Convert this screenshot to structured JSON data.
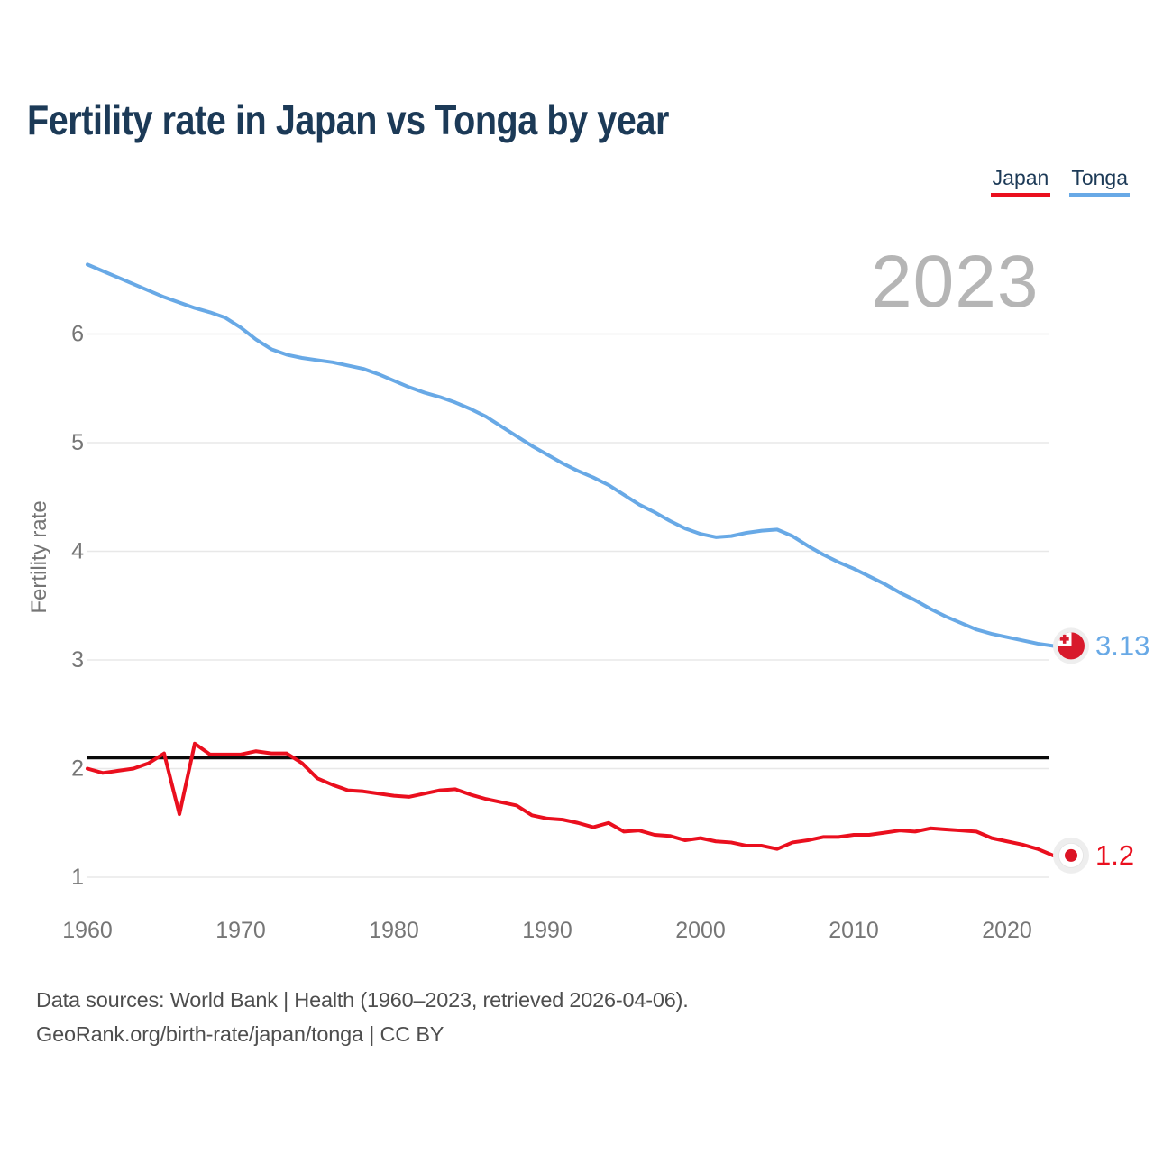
{
  "page": {
    "title": "Fertility rate in Japan vs Tonga by year",
    "watermark_year": "2023",
    "footer": {
      "line1": "Data sources: World Bank | Health (1960–2023, retrieved 2026-04-06).",
      "line2": "GeoRank.org/birth-rate/japan/tonga | CC BY"
    }
  },
  "legend": {
    "position": "top-right",
    "items": [
      {
        "label": "Japan",
        "color": "#ea0f1e"
      },
      {
        "label": "Tonga",
        "color": "#68a9e6"
      }
    ]
  },
  "chart_data": {
    "type": "line",
    "title": "Fertility rate in Japan vs Tonga by year",
    "xlabel": "",
    "ylabel": "Fertility rate",
    "xlim": [
      1960,
      2023
    ],
    "ylim": [
      1,
      6.7
    ],
    "x_ticks": [
      1960,
      1970,
      1980,
      1990,
      2000,
      2010,
      2020
    ],
    "y_ticks": [
      1,
      2,
      3,
      4,
      5,
      6
    ],
    "grid": "horizontal",
    "watermark": "2023",
    "reference_line": {
      "value": 2.1,
      "color": "#0a0a0a"
    },
    "x": [
      1960,
      1961,
      1962,
      1963,
      1964,
      1965,
      1966,
      1967,
      1968,
      1969,
      1970,
      1971,
      1972,
      1973,
      1974,
      1975,
      1976,
      1977,
      1978,
      1979,
      1980,
      1981,
      1982,
      1983,
      1984,
      1985,
      1986,
      1987,
      1988,
      1989,
      1990,
      1991,
      1992,
      1993,
      1994,
      1995,
      1996,
      1997,
      1998,
      1999,
      2000,
      2001,
      2002,
      2003,
      2004,
      2005,
      2006,
      2007,
      2008,
      2009,
      2010,
      2011,
      2012,
      2013,
      2014,
      2015,
      2016,
      2017,
      2018,
      2019,
      2020,
      2021,
      2022,
      2023
    ],
    "series": [
      {
        "name": "Japan",
        "color": "#ea0f1e",
        "end_label": "1.2",
        "end_marker": "japan-flag",
        "values": [
          2.0,
          1.96,
          1.98,
          2.0,
          2.05,
          2.14,
          1.58,
          2.23,
          2.13,
          2.13,
          2.13,
          2.16,
          2.14,
          2.14,
          2.05,
          1.91,
          1.85,
          1.8,
          1.79,
          1.77,
          1.75,
          1.74,
          1.77,
          1.8,
          1.81,
          1.76,
          1.72,
          1.69,
          1.66,
          1.57,
          1.54,
          1.53,
          1.5,
          1.46,
          1.5,
          1.42,
          1.43,
          1.39,
          1.38,
          1.34,
          1.36,
          1.33,
          1.32,
          1.29,
          1.29,
          1.26,
          1.32,
          1.34,
          1.37,
          1.37,
          1.39,
          1.39,
          1.41,
          1.43,
          1.42,
          1.45,
          1.44,
          1.43,
          1.42,
          1.36,
          1.33,
          1.3,
          1.26,
          1.2
        ]
      },
      {
        "name": "Tonga",
        "color": "#68a9e6",
        "end_label": "3.13",
        "end_marker": "tonga-flag",
        "values": [
          6.64,
          6.58,
          6.52,
          6.46,
          6.4,
          6.34,
          6.29,
          6.24,
          6.2,
          6.15,
          6.06,
          5.95,
          5.86,
          5.81,
          5.78,
          5.76,
          5.74,
          5.71,
          5.68,
          5.63,
          5.57,
          5.51,
          5.46,
          5.42,
          5.37,
          5.31,
          5.24,
          5.15,
          5.06,
          4.97,
          4.89,
          4.81,
          4.74,
          4.68,
          4.61,
          4.52,
          4.43,
          4.36,
          4.28,
          4.21,
          4.16,
          4.13,
          4.14,
          4.17,
          4.19,
          4.2,
          4.14,
          4.05,
          3.97,
          3.9,
          3.84,
          3.77,
          3.7,
          3.62,
          3.55,
          3.47,
          3.4,
          3.34,
          3.28,
          3.24,
          3.21,
          3.18,
          3.15,
          3.13
        ]
      }
    ]
  }
}
